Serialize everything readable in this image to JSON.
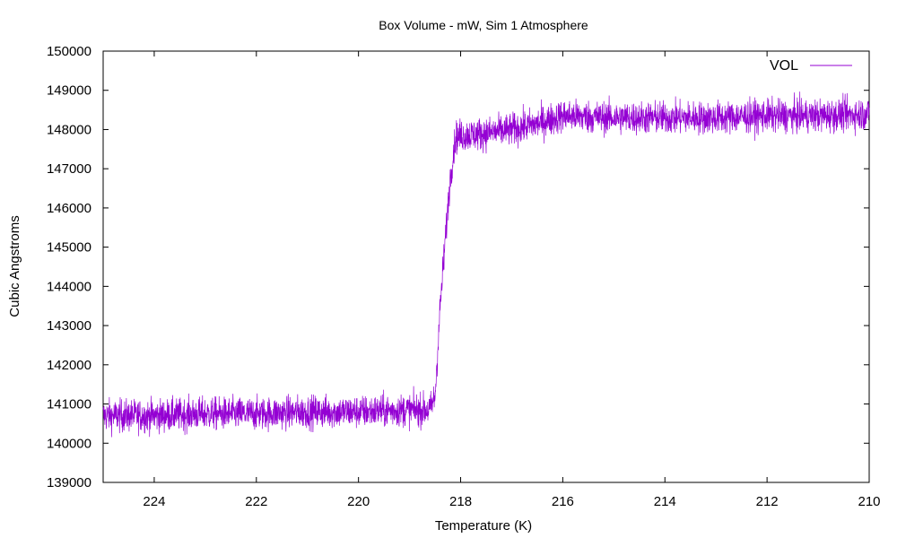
{
  "chart_data": {
    "type": "line",
    "title": "Box Volume - mW, Sim 1 Atmosphere",
    "xlabel": "Temperature (K)",
    "ylabel": "Cubic Angstroms",
    "xlim": [
      225,
      210
    ],
    "ylim": [
      139000,
      150000
    ],
    "x_reversed": true,
    "xticks": [
      224,
      222,
      220,
      218,
      216,
      214,
      212,
      210
    ],
    "yticks": [
      139000,
      140000,
      141000,
      142000,
      143000,
      144000,
      145000,
      146000,
      147000,
      148000,
      149000,
      150000
    ],
    "grid": false,
    "legend": "top-right",
    "series": [
      {
        "name": "VOL",
        "color": "#9400d3",
        "x": [
          225,
          224,
          223,
          222,
          221,
          220,
          219,
          218.6,
          218.5,
          218.4,
          218.3,
          218.2,
          218.1,
          218.0,
          217.5,
          217.0,
          216.5,
          216.0,
          215.0,
          214.0,
          213.0,
          212.0,
          211.0,
          210.0
        ],
        "y": [
          140700,
          140700,
          140750,
          140750,
          140800,
          140800,
          140850,
          140850,
          141200,
          143500,
          145200,
          146800,
          147800,
          147850,
          147900,
          148000,
          148150,
          148350,
          148300,
          148300,
          148300,
          148350,
          148350,
          148400
        ],
        "noise_amplitude": 1300
      }
    ]
  }
}
